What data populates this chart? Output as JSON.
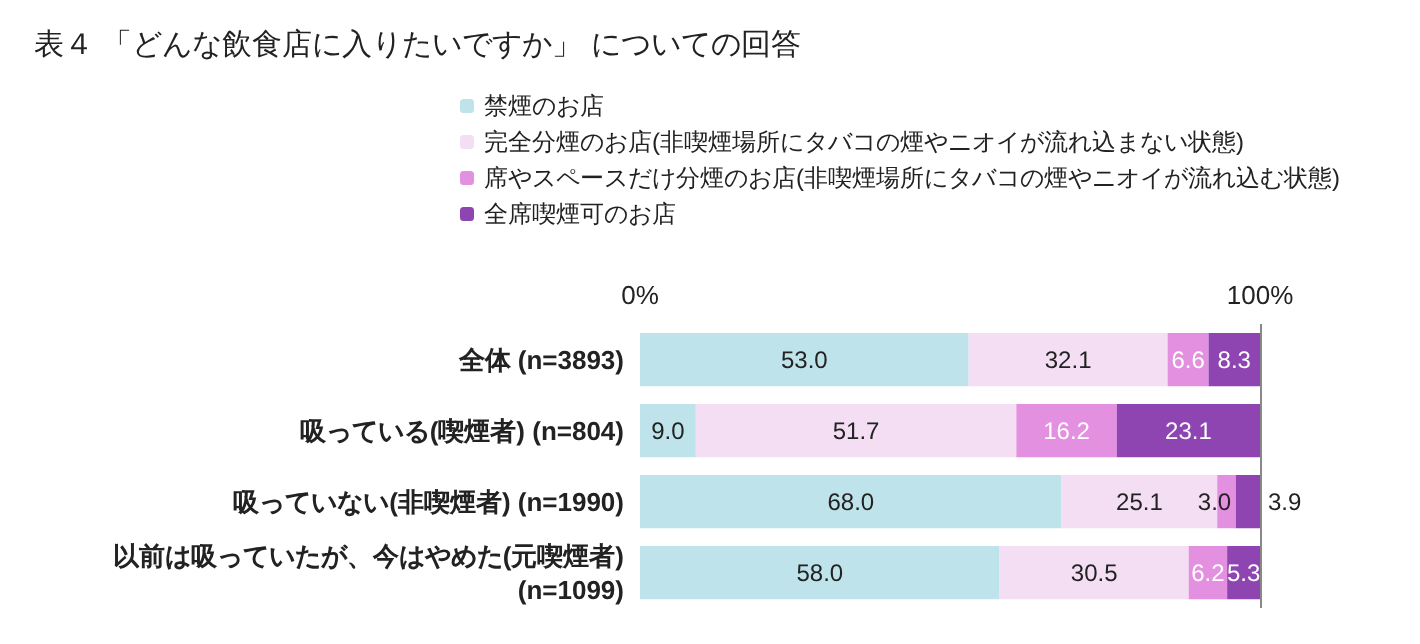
{
  "chart_data": {
    "type": "bar",
    "title": "表４ 「どんな飲食店に入りたいですか」 についての回答",
    "orientation": "horizontal",
    "stacked": true,
    "legend": "top",
    "grid": false,
    "categories": [
      "全体 (n=3893)",
      "吸っている(喫煙者) (n=804)",
      "吸っていない(非喫煙者) (n=1990)",
      "以前は吸っていたが、今はやめた(元喫煙者)\n(n=1099)"
    ],
    "xlim": [
      0,
      100
    ],
    "xticks": [
      {
        "value": 0,
        "label": "0%"
      },
      {
        "value": 100,
        "label": "100%"
      }
    ],
    "series": [
      {
        "name": "禁煙のお店",
        "color": "#bfe3ea",
        "values": [
          53.0,
          9.0,
          68.0,
          58.0
        ],
        "value_labels": [
          "53.0",
          "9.0",
          "68.0",
          "58.0"
        ]
      },
      {
        "name": "完全分煙のお店(非喫煙場所にタバコの煙やニオイが流れ込まない状態)",
        "color": "#f3def3",
        "values": [
          32.1,
          51.7,
          25.1,
          30.5
        ],
        "value_labels": [
          "32.1",
          "51.7",
          "25.1",
          "30.5"
        ]
      },
      {
        "name": "席やスペースだけ分煙のお店(非喫煙場所にタバコの煙やニオイが流れ込む状態)",
        "color": "#e490e0",
        "values": [
          6.6,
          16.2,
          3.0,
          6.2
        ],
        "value_labels": [
          "6.6",
          "16.2",
          "3.0",
          "6.2"
        ]
      },
      {
        "name": "全席喫煙可のお店",
        "color": "#8e45b2",
        "values": [
          8.3,
          23.1,
          3.9,
          5.3
        ],
        "value_labels": [
          "8.3",
          "23.1",
          "3.9",
          "5.3"
        ]
      }
    ]
  }
}
